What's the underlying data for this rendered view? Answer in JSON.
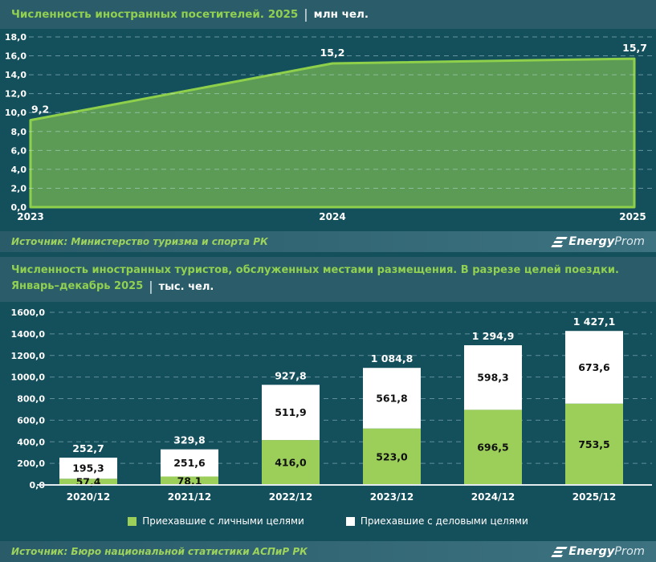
{
  "logo": {
    "bold": "Energy",
    "light": "Prom"
  },
  "section1": {
    "title": "Численность иностранных посетителей. 2025",
    "separator": "|",
    "unit": "млн чел.",
    "source": "Источник: Министерство туризма и спорта РК"
  },
  "section2": {
    "title_line1": "Численность иностранных туристов, обслуженных местами размещения. В разрезе целей поездки.",
    "title_line2": "Январь–декабрь 2025",
    "separator": "|",
    "unit": "тыс. чел.",
    "source": "Источник: Бюро национальной статистики АСПиР РК"
  },
  "chart_data": [
    {
      "type": "area",
      "title": "Численность иностранных посетителей. 2025",
      "unit": "млн чел.",
      "x": [
        "2023",
        "2024",
        "2025"
      ],
      "values": [
        9.2,
        15.2,
        15.7
      ],
      "point_labels": [
        "9,2",
        "15,2",
        "15,7"
      ],
      "ylim": [
        0,
        18
      ],
      "ytick_step": 2,
      "ytick_labels": [
        "0,0",
        "2,0",
        "4,0",
        "6,0",
        "8,0",
        "10,0",
        "12,0",
        "14,0",
        "16,0",
        "18,0"
      ],
      "grid": "dashed-horizontal",
      "fill_color": "#5c9b55",
      "line_color": "#8fd04b"
    },
    {
      "type": "stacked_bar",
      "title": "Численность иностранных туристов, обслуженных местами размещения. В разрезе целей поездки. Январь–декабрь 2025",
      "unit": "тыс. чел.",
      "categories": [
        "2020/12",
        "2021/12",
        "2022/12",
        "2023/12",
        "2024/12",
        "2025/12"
      ],
      "series": [
        {
          "name": "Приехавшие с личными целями",
          "color": "#9ccf5a",
          "values": [
            57.4,
            78.1,
            416.0,
            523.0,
            696.5,
            753.5
          ],
          "labels": [
            "57,4",
            "78,1",
            "416,0",
            "523,0",
            "696,5",
            "753,5"
          ]
        },
        {
          "name": "Приехавшие с деловыми целями",
          "color": "#ffffff",
          "values": [
            195.3,
            251.6,
            511.9,
            561.8,
            598.3,
            673.6
          ],
          "labels": [
            "195,3",
            "251,6",
            "511,9",
            "561,8",
            "598,3",
            "673,6"
          ]
        }
      ],
      "totals": [
        252.7,
        329.8,
        927.8,
        1084.8,
        1294.9,
        1427.1
      ],
      "total_labels": [
        "252,7",
        "329,8",
        "927,8",
        "1 084,8",
        "1 294,9",
        "1 427,1"
      ],
      "ylim": [
        0,
        1600
      ],
      "ytick_step": 200,
      "ytick_labels": [
        "0,0",
        "200,0",
        "400,0",
        "600,0",
        "800,0",
        "1000,0",
        "1200,0",
        "1400,0",
        "1600,0"
      ],
      "grid": "dashed-horizontal",
      "legend_position": "bottom"
    }
  ]
}
